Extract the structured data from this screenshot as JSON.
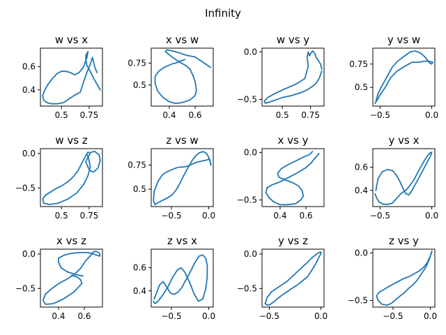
{
  "figure": {
    "title": "Infinity"
  },
  "colors": {
    "line": "#1f77b4"
  },
  "chart_data": [
    {
      "type": "line",
      "title": "w vs x",
      "x": [
        0.85,
        0.82,
        0.79,
        0.76,
        0.73,
        0.72,
        0.72,
        0.74,
        0.73,
        0.7,
        0.66,
        0.62,
        0.58,
        0.54,
        0.5,
        0.46,
        0.42,
        0.38,
        0.35,
        0.33,
        0.34,
        0.37,
        0.41,
        0.46,
        0.52,
        0.58,
        0.63,
        0.67,
        0.7,
        0.73,
        0.76,
        0.78,
        0.8,
        0.82
      ],
      "y": [
        0.4,
        0.45,
        0.5,
        0.56,
        0.61,
        0.66,
        0.7,
        0.73,
        0.68,
        0.6,
        0.55,
        0.53,
        0.55,
        0.56,
        0.56,
        0.54,
        0.5,
        0.45,
        0.4,
        0.35,
        0.31,
        0.29,
        0.28,
        0.28,
        0.29,
        0.33,
        0.36,
        0.38,
        0.47,
        0.55,
        0.62,
        0.68,
        0.6,
        0.55
      ],
      "xticks": [
        0.5,
        0.75
      ],
      "yticks": [
        0.4,
        0.6
      ],
      "xlim": [
        0.31,
        0.87
      ],
      "ylim": [
        0.26,
        0.76
      ]
    },
    {
      "type": "line",
      "title": "x vs w",
      "x": [
        0.72,
        0.66,
        0.6,
        0.53,
        0.47,
        0.42,
        0.38,
        0.37,
        0.42,
        0.48,
        0.53,
        0.56,
        0.58,
        0.6,
        0.61,
        0.6,
        0.56,
        0.5,
        0.45,
        0.4,
        0.35,
        0.31,
        0.29,
        0.29,
        0.32,
        0.36,
        0.39,
        0.42,
        0.45,
        0.48,
        0.52
      ],
      "y": [
        0.7,
        0.76,
        0.82,
        0.84,
        0.87,
        0.89,
        0.9,
        0.88,
        0.82,
        0.76,
        0.72,
        0.68,
        0.62,
        0.54,
        0.44,
        0.38,
        0.33,
        0.3,
        0.29,
        0.31,
        0.36,
        0.43,
        0.52,
        0.6,
        0.66,
        0.7,
        0.72,
        0.74,
        0.75,
        0.77,
        0.79
      ],
      "xticks": [
        0.4,
        0.6
      ],
      "yticks": [
        0.5,
        0.75
      ],
      "xlim": [
        0.26,
        0.74
      ],
      "ylim": [
        0.26,
        0.92
      ]
    },
    {
      "type": "line",
      "title": "w vs y",
      "x": [
        0.85,
        0.83,
        0.8,
        0.77,
        0.72,
        0.66,
        0.58,
        0.5,
        0.43,
        0.38,
        0.35,
        0.34,
        0.37,
        0.43,
        0.52,
        0.62,
        0.7,
        0.73,
        0.72,
        0.73,
        0.74,
        0.76,
        0.77,
        0.79,
        0.8,
        0.82,
        0.84,
        0.85
      ],
      "y": [
        -0.2,
        -0.27,
        -0.33,
        -0.36,
        -0.4,
        -0.43,
        -0.46,
        -0.48,
        -0.51,
        -0.53,
        -0.54,
        -0.52,
        -0.48,
        -0.44,
        -0.39,
        -0.34,
        -0.28,
        -0.15,
        -0.05,
        0.0,
        -0.04,
        0.0,
        0.01,
        -0.02,
        -0.06,
        -0.09,
        -0.13,
        -0.18
      ],
      "xticks": [
        0.5,
        0.75
      ],
      "yticks": [
        -0.5,
        0.0
      ],
      "xlim": [
        0.32,
        0.87
      ],
      "ylim": [
        -0.57,
        0.04
      ]
    },
    {
      "type": "line",
      "title": "y vs w",
      "x": [
        -0.54,
        -0.52,
        -0.49,
        -0.46,
        -0.42,
        -0.38,
        -0.33,
        -0.27,
        -0.21,
        -0.16,
        -0.11,
        -0.07,
        -0.04,
        -0.02,
        0.0,
        0.01,
        -0.03,
        -0.07,
        -0.12,
        -0.19,
        -0.27,
        -0.34,
        -0.4,
        -0.45,
        -0.5,
        -0.53,
        -0.55
      ],
      "y": [
        0.35,
        0.43,
        0.5,
        0.56,
        0.64,
        0.72,
        0.78,
        0.83,
        0.88,
        0.89,
        0.87,
        0.83,
        0.79,
        0.76,
        0.75,
        0.77,
        0.78,
        0.78,
        0.77,
        0.77,
        0.72,
        0.67,
        0.6,
        0.5,
        0.42,
        0.36,
        0.33
      ],
      "xticks": [
        -0.5,
        0.0
      ],
      "yticks": [
        0.5,
        0.75
      ],
      "xlim": [
        -0.57,
        0.03
      ],
      "ylim": [
        0.3,
        0.92
      ]
    },
    {
      "type": "line",
      "title": "w vs z",
      "x": [
        0.76,
        0.74,
        0.72,
        0.74,
        0.76,
        0.79,
        0.83,
        0.85,
        0.84,
        0.8,
        0.77,
        0.76,
        0.74,
        0.72,
        0.69,
        0.65,
        0.6,
        0.55,
        0.5,
        0.45,
        0.4,
        0.36,
        0.33,
        0.34,
        0.39,
        0.47,
        0.56,
        0.64,
        0.7,
        0.74,
        0.76,
        0.75,
        0.74,
        0.73
      ],
      "y": [
        0.0,
        -0.05,
        -0.12,
        -0.2,
        -0.25,
        -0.27,
        -0.21,
        -0.1,
        -0.02,
        0.03,
        0.02,
        0.0,
        0.02,
        -0.03,
        -0.12,
        -0.25,
        -0.35,
        -0.42,
        -0.47,
        -0.51,
        -0.56,
        -0.6,
        -0.66,
        -0.72,
        -0.74,
        -0.72,
        -0.66,
        -0.57,
        -0.45,
        -0.32,
        -0.2,
        -0.1,
        -0.04,
        -0.02
      ],
      "xticks": [
        0.5,
        0.75
      ],
      "yticks": [
        -0.5,
        0.0
      ],
      "xlim": [
        0.31,
        0.87
      ],
      "ylim": [
        -0.77,
        0.07
      ]
    },
    {
      "type": "line",
      "title": "z vs w",
      "x": [
        0.02,
        0.03,
        0.02,
        0.0,
        -0.03,
        -0.07,
        -0.12,
        -0.17,
        -0.22,
        -0.28,
        -0.33,
        -0.38,
        -0.43,
        -0.48,
        -0.53,
        -0.58,
        -0.63,
        -0.68,
        -0.72,
        -0.74,
        -0.73,
        -0.68,
        -0.62,
        -0.56,
        -0.5,
        -0.44,
        -0.38,
        -0.33,
        -0.28,
        -0.22,
        -0.16,
        -0.1,
        -0.04,
        0.0,
        0.01
      ],
      "y": [
        0.77,
        0.75,
        0.79,
        0.83,
        0.87,
        0.89,
        0.88,
        0.85,
        0.8,
        0.72,
        0.65,
        0.57,
        0.5,
        0.45,
        0.42,
        0.4,
        0.38,
        0.36,
        0.34,
        0.38,
        0.48,
        0.58,
        0.65,
        0.68,
        0.7,
        0.72,
        0.73,
        0.73,
        0.74,
        0.76,
        0.78,
        0.79,
        0.8,
        0.81,
        0.8
      ],
      "xticks": [
        -0.5,
        0.0
      ],
      "yticks": [
        0.5,
        0.75
      ],
      "xlim": [
        -0.77,
        0.06
      ],
      "ylim": [
        0.32,
        0.92
      ]
    },
    {
      "type": "line",
      "title": "x vs y",
      "x": [
        0.65,
        0.63,
        0.58,
        0.52,
        0.46,
        0.41,
        0.38,
        0.39,
        0.44,
        0.5,
        0.54,
        0.57,
        0.58,
        0.56,
        0.52,
        0.46,
        0.4,
        0.35,
        0.31,
        0.29,
        0.3,
        0.34,
        0.4,
        0.47,
        0.54,
        0.6,
        0.64,
        0.67,
        0.69,
        0.7
      ],
      "y": [
        0.01,
        -0.02,
        -0.05,
        -0.09,
        -0.13,
        -0.17,
        -0.22,
        -0.26,
        -0.29,
        -0.32,
        -0.35,
        -0.4,
        -0.46,
        -0.5,
        -0.54,
        -0.55,
        -0.55,
        -0.52,
        -0.47,
        -0.42,
        -0.37,
        -0.34,
        -0.31,
        -0.26,
        -0.21,
        -0.16,
        -0.11,
        -0.06,
        -0.03,
        -0.01
      ],
      "xticks": [
        0.4,
        0.6
      ],
      "yticks": [
        -0.5,
        0.0
      ],
      "xlim": [
        0.26,
        0.74
      ],
      "ylim": [
        -0.57,
        0.04
      ]
    },
    {
      "type": "line",
      "title": "y vs x",
      "x": [
        -0.54,
        -0.52,
        -0.48,
        -0.43,
        -0.38,
        -0.34,
        -0.31,
        -0.28,
        -0.25,
        -0.22,
        -0.19,
        -0.16,
        -0.13,
        -0.1,
        -0.07,
        -0.04,
        -0.01,
        0.0,
        -0.02,
        -0.04,
        -0.07,
        -0.12,
        -0.18,
        -0.24,
        -0.3,
        -0.35,
        -0.38,
        -0.42,
        -0.47,
        -0.51,
        -0.53,
        -0.55
      ],
      "y": [
        0.4,
        0.5,
        0.56,
        0.58,
        0.57,
        0.53,
        0.48,
        0.42,
        0.37,
        0.36,
        0.4,
        0.45,
        0.5,
        0.55,
        0.6,
        0.65,
        0.7,
        0.73,
        0.72,
        0.7,
        0.66,
        0.58,
        0.48,
        0.41,
        0.37,
        0.32,
        0.29,
        0.28,
        0.28,
        0.3,
        0.33,
        0.37
      ],
      "xticks": [
        -0.5,
        0.0
      ],
      "yticks": [
        0.4,
        0.6
      ],
      "xlim": [
        -0.57,
        0.03
      ],
      "ylim": [
        0.26,
        0.76
      ]
    },
    {
      "type": "line",
      "title": "x vs z",
      "x": [
        0.59,
        0.54,
        0.47,
        0.42,
        0.4,
        0.4,
        0.44,
        0.5,
        0.57,
        0.63,
        0.67,
        0.7,
        0.72,
        0.72,
        0.71,
        0.69,
        0.67,
        0.65,
        0.61,
        0.57,
        0.52,
        0.46,
        0.4,
        0.35,
        0.3,
        0.28,
        0.3,
        0.36,
        0.44,
        0.52,
        0.58,
        0.57,
        0.54,
        0.5
      ],
      "y": [
        -0.32,
        -0.3,
        -0.26,
        -0.2,
        -0.12,
        -0.06,
        -0.02,
        0.01,
        0.02,
        0.02,
        0.0,
        -0.02,
        -0.03,
        0.0,
        0.02,
        0.04,
        0.03,
        -0.02,
        -0.1,
        -0.21,
        -0.3,
        -0.37,
        -0.43,
        -0.5,
        -0.58,
        -0.67,
        -0.73,
        -0.72,
        -0.65,
        -0.55,
        -0.43,
        -0.37,
        -0.33,
        -0.31
      ],
      "xticks": [
        0.4,
        0.6
      ],
      "yticks": [
        -0.5,
        0.0
      ],
      "xlim": [
        0.26,
        0.74
      ],
      "ylim": [
        -0.77,
        0.07
      ]
    },
    {
      "type": "line",
      "title": "z vs x",
      "x": [
        -0.74,
        -0.72,
        -0.68,
        -0.62,
        -0.55,
        -0.48,
        -0.42,
        -0.37,
        -0.32,
        -0.26,
        -0.2,
        -0.14,
        -0.08,
        -0.04,
        -0.02,
        -0.02,
        -0.04,
        -0.08,
        -0.13,
        -0.19,
        -0.25,
        -0.31,
        -0.36,
        -0.41,
        -0.46,
        -0.51,
        -0.56,
        -0.61,
        -0.66,
        -0.7,
        -0.73
      ],
      "y": [
        0.31,
        0.29,
        0.31,
        0.36,
        0.43,
        0.52,
        0.58,
        0.6,
        0.56,
        0.48,
        0.38,
        0.31,
        0.33,
        0.42,
        0.52,
        0.62,
        0.68,
        0.71,
        0.7,
        0.64,
        0.56,
        0.49,
        0.43,
        0.39,
        0.37,
        0.38,
        0.43,
        0.48,
        0.45,
        0.38,
        0.33
      ],
      "xticks": [
        -0.5,
        0.0
      ],
      "yticks": [
        0.4,
        0.6
      ],
      "xlim": [
        -0.77,
        0.06
      ],
      "ylim": [
        0.26,
        0.76
      ]
    },
    {
      "type": "line",
      "title": "y vs z",
      "x": [
        -0.54,
        -0.52,
        -0.48,
        -0.43,
        -0.38,
        -0.33,
        -0.28,
        -0.23,
        -0.18,
        -0.13,
        -0.09,
        -0.05,
        -0.02,
        0.0,
        0.0,
        -0.02,
        -0.05,
        -0.09,
        -0.13,
        -0.18,
        -0.23,
        -0.28,
        -0.33,
        -0.38,
        -0.43,
        -0.47,
        -0.5,
        -0.52,
        -0.54
      ],
      "y": [
        -0.72,
        -0.63,
        -0.55,
        -0.5,
        -0.45,
        -0.4,
        -0.33,
        -0.26,
        -0.19,
        -0.12,
        -0.06,
        -0.01,
        0.02,
        0.03,
        0.01,
        -0.05,
        -0.14,
        -0.24,
        -0.33,
        -0.39,
        -0.45,
        -0.5,
        -0.55,
        -0.6,
        -0.66,
        -0.71,
        -0.74,
        -0.74,
        -0.72
      ],
      "xticks": [
        -0.5,
        0.0
      ],
      "yticks": [
        -0.5,
        0.0
      ],
      "xlim": [
        -0.57,
        0.03
      ],
      "ylim": [
        -0.77,
        0.07
      ]
    },
    {
      "type": "line",
      "title": "z vs y",
      "x": [
        -0.72,
        -0.7,
        -0.65,
        -0.58,
        -0.52,
        -0.46,
        -0.4,
        -0.35,
        -0.3,
        -0.24,
        -0.18,
        -0.12,
        -0.06,
        -0.02,
        0.0,
        0.02,
        0.02,
        0.0,
        -0.04,
        -0.09,
        -0.15,
        -0.22,
        -0.29,
        -0.36,
        -0.43,
        -0.5,
        -0.57,
        -0.63,
        -0.68,
        -0.71
      ],
      "y": [
        -0.45,
        -0.5,
        -0.54,
        -0.55,
        -0.53,
        -0.49,
        -0.45,
        -0.42,
        -0.38,
        -0.34,
        -0.29,
        -0.22,
        -0.15,
        -0.08,
        -0.03,
        0.01,
        0.02,
        -0.03,
        -0.1,
        -0.15,
        -0.19,
        -0.22,
        -0.25,
        -0.27,
        -0.3,
        -0.33,
        -0.36,
        -0.39,
        -0.41,
        -0.44
      ],
      "xticks": [
        -0.5,
        0.0
      ],
      "yticks": [
        -0.5,
        0.0
      ],
      "xlim": [
        -0.77,
        0.06
      ],
      "ylim": [
        -0.57,
        0.04
      ]
    }
  ]
}
